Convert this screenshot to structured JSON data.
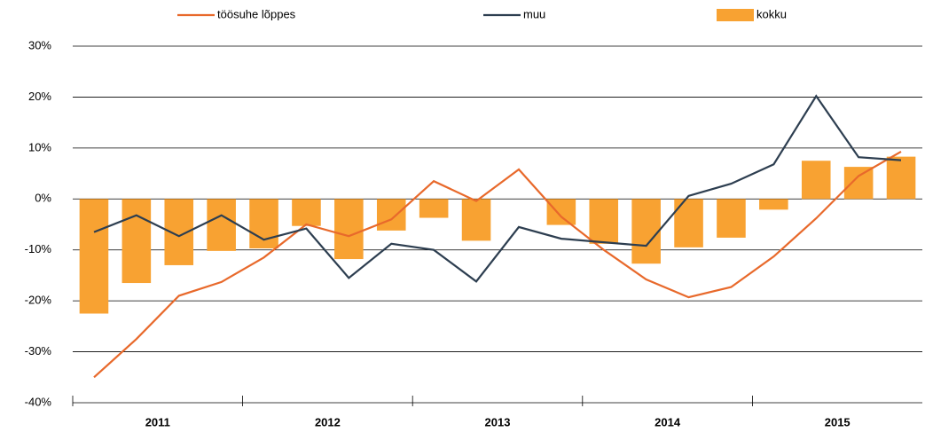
{
  "chart_data": {
    "type": "bar-line",
    "categories": [
      null,
      null,
      null,
      null,
      null,
      null,
      null,
      null,
      null,
      null,
      null,
      null,
      null,
      null,
      null,
      null,
      null,
      null,
      null,
      null
    ],
    "groups": [
      "2011",
      "2012",
      "2013",
      "2014",
      "2015"
    ],
    "series": [
      {
        "name": "töösuhe lõppes",
        "type": "line",
        "color": "#e8692b",
        "values": [
          -35,
          -27.5,
          -19,
          -16.3,
          -11.5,
          -5,
          -7.3,
          -4,
          3.5,
          -0.4,
          5.8,
          -3.5,
          -10,
          -15.8,
          -19.3,
          -17.3,
          -11.3,
          -3.8,
          4.5,
          9.3
        ]
      },
      {
        "name": "muu",
        "type": "line",
        "color": "#2d3e50",
        "values": [
          -6.5,
          -3.2,
          -7.3,
          -3.2,
          -8,
          -5.8,
          -15.5,
          -8.8,
          -10,
          -16.2,
          -5.5,
          -7.8,
          -8.5,
          -9.2,
          0.6,
          3,
          6.8,
          20.2,
          8.2,
          7.6
        ]
      },
      {
        "name": "kokku",
        "type": "bar",
        "color": "#f8a232",
        "values": [
          -22.5,
          -16.5,
          -13,
          -10.2,
          -9.7,
          -5.3,
          -11.8,
          -6.2,
          -3.7,
          -8.2,
          0,
          -5.1,
          -8.8,
          -12.7,
          -9.5,
          -7.6,
          -2.1,
          7.5,
          6.3,
          8.3
        ]
      }
    ],
    "ylim": [
      -40,
      30
    ],
    "yticks": [
      {
        "value": -40,
        "label": "-40%"
      },
      {
        "value": -30,
        "label": "-30%"
      },
      {
        "value": -20,
        "label": "-20%"
      },
      {
        "value": -10,
        "label": "-10%"
      },
      {
        "value": 0,
        "label": "0%"
      },
      {
        "value": 10,
        "label": "10%"
      },
      {
        "value": 20,
        "label": "20%"
      },
      {
        "value": 30,
        "label": "30%"
      }
    ],
    "grid": true,
    "legend": "top"
  }
}
